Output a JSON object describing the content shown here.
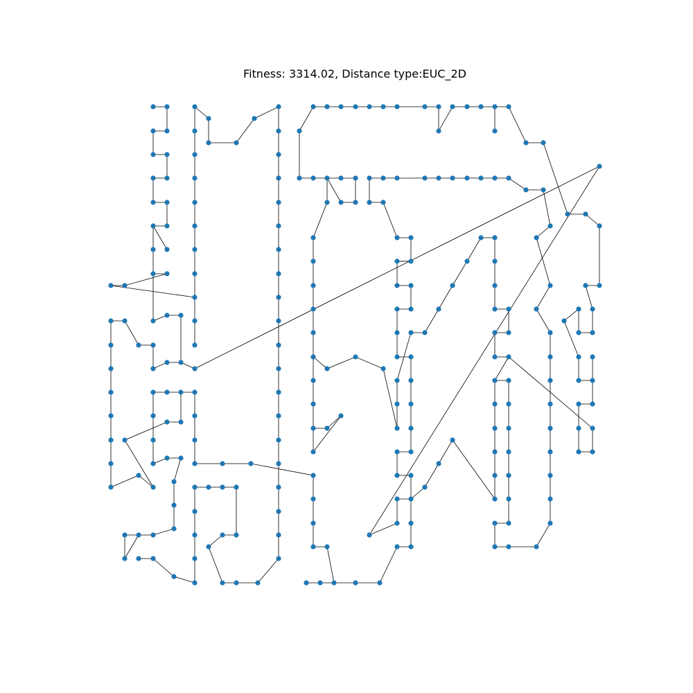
{
  "chart_data": {
    "type": "scatter",
    "title": "Fitness: 3314.02, Distance type:EUC_2D",
    "xlabel": "",
    "ylabel": "",
    "axes_visible": false,
    "grid": false,
    "legend": "none",
    "colors": {
      "node": "#1f77b4",
      "edge": "#000000"
    },
    "segments": [
      [
        [
          221,
          154
        ],
        [
          241,
          154
        ],
        [
          241,
          189
        ],
        [
          221,
          189
        ],
        [
          221,
          223
        ],
        [
          241,
          223
        ],
        [
          241,
          257
        ],
        [
          221,
          257
        ],
        [
          221,
          292
        ],
        [
          241,
          292
        ],
        [
          241,
          326
        ],
        [
          221,
          326
        ],
        [
          221,
          360
        ],
        [
          221,
          395
        ],
        [
          241,
          395
        ],
        [
          180,
          412
        ],
        [
          160,
          412
        ]
      ],
      [
        [
          221,
          326
        ],
        [
          241,
          360
        ]
      ],
      [
        [
          221,
          395
        ],
        [
          221,
          463
        ],
        [
          241,
          455
        ],
        [
          261,
          455
        ],
        [
          261,
          523
        ],
        [
          241,
          523
        ],
        [
          221,
          532
        ],
        [
          221,
          498
        ],
        [
          200,
          498
        ],
        [
          180,
          463
        ],
        [
          160,
          463
        ],
        [
          160,
          498
        ],
        [
          160,
          532
        ],
        [
          160,
          566
        ],
        [
          160,
          600
        ],
        [
          160,
          635
        ],
        [
          160,
          669
        ],
        [
          160,
          703
        ],
        [
          200,
          686
        ],
        [
          221,
          703
        ],
        [
          180,
          635
        ],
        [
          241,
          609
        ],
        [
          261,
          609
        ],
        [
          261,
          566
        ],
        [
          241,
          566
        ],
        [
          221,
          566
        ],
        [
          221,
          600
        ],
        [
          221,
          635
        ],
        [
          221,
          669
        ],
        [
          241,
          661
        ],
        [
          261,
          661
        ],
        [
          251,
          695
        ],
        [
          251,
          729
        ],
        [
          251,
          763
        ],
        [
          221,
          772
        ],
        [
          200,
          772
        ],
        [
          180,
          772
        ],
        [
          180,
          806
        ],
        [
          200,
          772
        ]
      ],
      [
        [
          200,
          806
        ],
        [
          221,
          806
        ],
        [
          251,
          832
        ],
        [
          281,
          841
        ],
        [
          281,
          806
        ],
        [
          281,
          772
        ],
        [
          281,
          738
        ],
        [
          281,
          703
        ],
        [
          301,
          703
        ],
        [
          321,
          703
        ],
        [
          341,
          703
        ],
        [
          341,
          772
        ],
        [
          321,
          772
        ],
        [
          301,
          789
        ],
        [
          321,
          841
        ],
        [
          341,
          841
        ],
        [
          372,
          841
        ],
        [
          402,
          806
        ],
        [
          402,
          772
        ],
        [
          402,
          738
        ],
        [
          402,
          703
        ],
        [
          402,
          669
        ],
        [
          402,
          635
        ],
        [
          402,
          600
        ],
        [
          402,
          566
        ],
        [
          402,
          532
        ],
        [
          402,
          498
        ],
        [
          402,
          463
        ],
        [
          402,
          429
        ],
        [
          402,
          395
        ],
        [
          402,
          360
        ],
        [
          402,
          326
        ],
        [
          402,
          292
        ],
        [
          402,
          257
        ],
        [
          402,
          223
        ],
        [
          402,
          189
        ],
        [
          402,
          154
        ],
        [
          367,
          171
        ],
        [
          341,
          206
        ],
        [
          301,
          206
        ],
        [
          301,
          171
        ],
        [
          281,
          154
        ],
        [
          281,
          189
        ],
        [
          281,
          223
        ],
        [
          281,
          257
        ],
        [
          281,
          292
        ],
        [
          281,
          326
        ],
        [
          281,
          360
        ],
        [
          281,
          395
        ],
        [
          281,
          429
        ],
        [
          281,
          463
        ],
        [
          281,
          498
        ]
      ],
      [
        [
          281,
          429
        ],
        [
          160,
          412
        ]
      ],
      [
        [
          261,
          523
        ],
        [
          281,
          532
        ],
        [
          865,
          240
        ],
        [
          533,
          772
        ],
        [
          573,
          755
        ],
        [
          573,
          720
        ],
        [
          593,
          720
        ],
        [
          613,
          703
        ],
        [
          633,
          669
        ],
        [
          653,
          635
        ],
        [
          714,
          720
        ],
        [
          714,
          686
        ],
        [
          714,
          652
        ],
        [
          714,
          618
        ],
        [
          714,
          583
        ],
        [
          714,
          549
        ],
        [
          734,
          549
        ],
        [
          734,
          583
        ],
        [
          734,
          618
        ],
        [
          734,
          652
        ],
        [
          734,
          686
        ],
        [
          734,
          720
        ],
        [
          734,
          755
        ],
        [
          714,
          755
        ],
        [
          714,
          789
        ],
        [
          734,
          789
        ],
        [
          774,
          789
        ],
        [
          794,
          755
        ],
        [
          794,
          720
        ],
        [
          794,
          686
        ],
        [
          794,
          652
        ],
        [
          794,
          618
        ],
        [
          794,
          583
        ],
        [
          794,
          549
        ],
        [
          794,
          515
        ],
        [
          794,
          480
        ],
        [
          774,
          446
        ],
        [
          794,
          412
        ],
        [
          774,
          343
        ],
        [
          794,
          326
        ],
        [
          784,
          274
        ],
        [
          759,
          274
        ],
        [
          734,
          257
        ],
        [
          714,
          257
        ],
        [
          694,
          257
        ],
        [
          674,
          257
        ],
        [
          653,
          257
        ],
        [
          633,
          257
        ],
        [
          613,
          257
        ],
        [
          573,
          257
        ],
        [
          553,
          257
        ],
        [
          533,
          257
        ],
        [
          533,
          292
        ],
        [
          553,
          292
        ],
        [
          573,
          343
        ],
        [
          593,
          343
        ],
        [
          593,
          377
        ],
        [
          573,
          377
        ],
        [
          573,
          412
        ],
        [
          593,
          412
        ],
        [
          593,
          446
        ],
        [
          573,
          446
        ],
        [
          573,
          480
        ],
        [
          573,
          515
        ],
        [
          593,
          515
        ],
        [
          593,
          549
        ],
        [
          593,
          583
        ],
        [
          593,
          618
        ],
        [
          593,
          652
        ],
        [
          573,
          652
        ],
        [
          573,
          686
        ],
        [
          593,
          686
        ],
        [
          593,
          720
        ],
        [
          593,
          755
        ],
        [
          593,
          789
        ],
        [
          573,
          789
        ],
        [
          548,
          841
        ],
        [
          513,
          841
        ],
        [
          482,
          841
        ],
        [
          462,
          841
        ],
        [
          442,
          841
        ]
      ],
      [
        [
          281,
          566
        ],
        [
          261,
          566
        ]
      ],
      [
        [
          281,
          566
        ],
        [
          281,
          600
        ],
        [
          281,
          635
        ],
        [
          281,
          669
        ],
        [
          321,
          669
        ],
        [
          362,
          669
        ],
        [
          452,
          686
        ],
        [
          452,
          720
        ],
        [
          452,
          755
        ],
        [
          452,
          789
        ],
        [
          472,
          789
        ],
        [
          482,
          841
        ]
      ],
      [
        [
          452,
          652
        ],
        [
          492,
          600
        ],
        [
          472,
          618
        ],
        [
          452,
          618
        ],
        [
          452,
          583
        ],
        [
          452,
          549
        ],
        [
          452,
          515
        ],
        [
          472,
          532
        ],
        [
          513,
          515
        ],
        [
          553,
          532
        ],
        [
          573,
          618
        ],
        [
          573,
          583
        ],
        [
          573,
          549
        ],
        [
          593,
          480
        ],
        [
          613,
          480
        ],
        [
          633,
          446
        ],
        [
          653,
          412
        ],
        [
          674,
          377
        ],
        [
          694,
          343
        ],
        [
          714,
          343
        ],
        [
          714,
          377
        ],
        [
          714,
          412
        ],
        [
          714,
          446
        ],
        [
          734,
          446
        ],
        [
          734,
          480
        ],
        [
          714,
          480
        ],
        [
          714,
          515
        ],
        [
          734,
          515
        ],
        [
          855,
          618
        ],
        [
          855,
          652
        ],
        [
          835,
          652
        ],
        [
          835,
          618
        ],
        [
          835,
          583
        ],
        [
          855,
          583
        ],
        [
          855,
          549
        ],
        [
          835,
          549
        ],
        [
          835,
          515
        ],
        [
          814,
          463
        ],
        [
          835,
          446
        ],
        [
          835,
          480
        ],
        [
          855,
          480
        ],
        [
          855,
          446
        ],
        [
          845,
          412
        ],
        [
          865,
          412
        ],
        [
          865,
          326
        ],
        [
          845,
          309
        ],
        [
          819,
          309
        ],
        [
          784,
          206
        ],
        [
          759,
          206
        ],
        [
          734,
          154
        ],
        [
          714,
          154
        ],
        [
          694,
          154
        ],
        [
          674,
          154
        ],
        [
          653,
          154
        ],
        [
          633,
          189
        ],
        [
          633,
          154
        ],
        [
          613,
          154
        ],
        [
          573,
          154
        ],
        [
          553,
          154
        ],
        [
          533,
          154
        ],
        [
          513,
          154
        ],
        [
          492,
          154
        ],
        [
          472,
          154
        ],
        [
          452,
          154
        ],
        [
          432,
          189
        ],
        [
          432,
          257
        ],
        [
          452,
          257
        ],
        [
          472,
          257
        ],
        [
          492,
          257
        ],
        [
          513,
          257
        ],
        [
          513,
          292
        ],
        [
          492,
          292
        ],
        [
          472,
          257
        ],
        [
          472,
          292
        ],
        [
          452,
          343
        ],
        [
          452,
          377
        ],
        [
          452,
          412
        ],
        [
          452,
          446
        ],
        [
          452,
          480
        ],
        [
          452,
          515
        ]
      ],
      [
        [
          452,
          652
        ],
        [
          452,
          618
        ]
      ],
      [
        [
          714,
          189
        ],
        [
          714,
          154
        ]
      ],
      [
        [
          573,
          377
        ],
        [
          593,
          377
        ]
      ],
      [
        [
          734,
          515
        ],
        [
          714,
          549
        ]
      ],
      [
        [
          855,
          515
        ],
        [
          855,
          549
        ]
      ]
    ]
  }
}
